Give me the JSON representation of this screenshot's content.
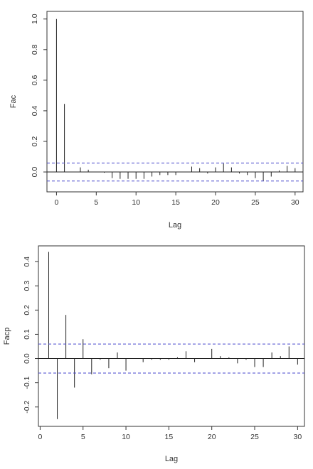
{
  "chart_data": [
    {
      "type": "bar",
      "xlabel": "Lag",
      "ylabel": "Fac",
      "xlim": [
        -1.2,
        31.0
      ],
      "ylim": [
        -0.13,
        1.05
      ],
      "x_ticks": [
        0,
        5,
        10,
        15,
        20,
        25,
        30
      ],
      "y_ticks": [
        0.0,
        0.2,
        0.4,
        0.6,
        0.8,
        1.0
      ],
      "y_tick_labels": [
        "0.0",
        "0.2",
        "0.4",
        "0.6",
        "0.8",
        "1.0"
      ],
      "confidence_band": [
        -0.059,
        0.059
      ],
      "band_color": "#4646cc",
      "x": [
        0,
        1,
        2,
        3,
        4,
        5,
        6,
        7,
        8,
        9,
        10,
        11,
        12,
        13,
        14,
        15,
        16,
        17,
        18,
        19,
        20,
        21,
        22,
        23,
        24,
        25,
        26,
        27,
        28,
        29,
        30
      ],
      "values": [
        1.0,
        0.445,
        0.0,
        0.03,
        0.015,
        0.0,
        -0.005,
        -0.04,
        -0.045,
        -0.045,
        -0.045,
        -0.045,
        -0.03,
        -0.02,
        -0.02,
        -0.02,
        0.0,
        0.035,
        0.025,
        -0.01,
        0.03,
        0.055,
        0.03,
        -0.01,
        -0.02,
        -0.04,
        -0.06,
        -0.03,
        0.01,
        0.04,
        0.025
      ]
    },
    {
      "type": "bar",
      "xlabel": "Lag",
      "ylabel": "Facp",
      "xlim": [
        -0.2,
        30.8
      ],
      "ylim": [
        -0.28,
        0.465
      ],
      "x_ticks": [
        0,
        5,
        10,
        15,
        20,
        25,
        30
      ],
      "y_ticks": [
        -0.2,
        -0.1,
        0.0,
        0.1,
        0.2,
        0.3,
        0.4
      ],
      "y_tick_labels": [
        "-0.2",
        "-0.1",
        "0.0",
        "0.1",
        "0.2",
        "0.3",
        "0.4"
      ],
      "confidence_band": [
        -0.06,
        0.06
      ],
      "band_color": "#4646cc",
      "x": [
        1,
        2,
        3,
        4,
        5,
        6,
        7,
        8,
        9,
        10,
        11,
        12,
        13,
        14,
        15,
        16,
        17,
        18,
        19,
        20,
        21,
        22,
        23,
        24,
        25,
        26,
        27,
        28,
        29,
        30
      ],
      "values": [
        0.44,
        -0.25,
        0.18,
        -0.12,
        0.08,
        -0.065,
        -0.005,
        -0.04,
        0.025,
        -0.05,
        0.0,
        -0.015,
        -0.005,
        -0.005,
        -0.005,
        0.005,
        0.03,
        -0.015,
        0.0,
        0.04,
        0.01,
        0.005,
        -0.02,
        -0.005,
        -0.035,
        -0.035,
        0.025,
        0.01,
        0.05,
        -0.025
      ]
    }
  ]
}
